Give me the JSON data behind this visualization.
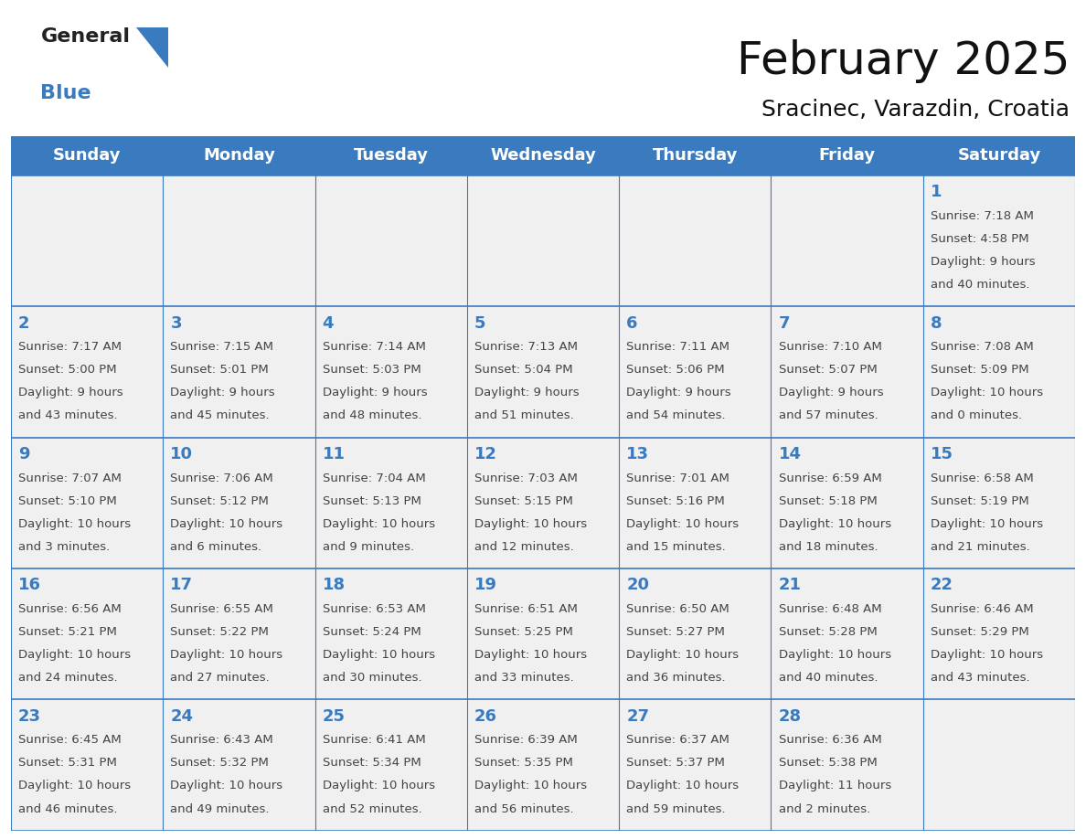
{
  "title": "February 2025",
  "subtitle": "Sracinec, Varazdin, Croatia",
  "header_bg": "#3a7abf",
  "header_text_color": "#ffffff",
  "grid_line_color": "#3a7abf",
  "day_number_color": "#3a7abf",
  "cell_text_color": "#444444",
  "background_color": "#ffffff",
  "weekdays": [
    "Sunday",
    "Monday",
    "Tuesday",
    "Wednesday",
    "Thursday",
    "Friday",
    "Saturday"
  ],
  "days_data": [
    {
      "day": 1,
      "col": 6,
      "row": 0,
      "sunrise": "7:18 AM",
      "sunset": "4:58 PM",
      "daylight_line1": "9 hours",
      "daylight_line2": "and 40 minutes."
    },
    {
      "day": 2,
      "col": 0,
      "row": 1,
      "sunrise": "7:17 AM",
      "sunset": "5:00 PM",
      "daylight_line1": "9 hours",
      "daylight_line2": "and 43 minutes."
    },
    {
      "day": 3,
      "col": 1,
      "row": 1,
      "sunrise": "7:15 AM",
      "sunset": "5:01 PM",
      "daylight_line1": "9 hours",
      "daylight_line2": "and 45 minutes."
    },
    {
      "day": 4,
      "col": 2,
      "row": 1,
      "sunrise": "7:14 AM",
      "sunset": "5:03 PM",
      "daylight_line1": "9 hours",
      "daylight_line2": "and 48 minutes."
    },
    {
      "day": 5,
      "col": 3,
      "row": 1,
      "sunrise": "7:13 AM",
      "sunset": "5:04 PM",
      "daylight_line1": "9 hours",
      "daylight_line2": "and 51 minutes."
    },
    {
      "day": 6,
      "col": 4,
      "row": 1,
      "sunrise": "7:11 AM",
      "sunset": "5:06 PM",
      "daylight_line1": "9 hours",
      "daylight_line2": "and 54 minutes."
    },
    {
      "day": 7,
      "col": 5,
      "row": 1,
      "sunrise": "7:10 AM",
      "sunset": "5:07 PM",
      "daylight_line1": "9 hours",
      "daylight_line2": "and 57 minutes."
    },
    {
      "day": 8,
      "col": 6,
      "row": 1,
      "sunrise": "7:08 AM",
      "sunset": "5:09 PM",
      "daylight_line1": "10 hours",
      "daylight_line2": "and 0 minutes."
    },
    {
      "day": 9,
      "col": 0,
      "row": 2,
      "sunrise": "7:07 AM",
      "sunset": "5:10 PM",
      "daylight_line1": "10 hours",
      "daylight_line2": "and 3 minutes."
    },
    {
      "day": 10,
      "col": 1,
      "row": 2,
      "sunrise": "7:06 AM",
      "sunset": "5:12 PM",
      "daylight_line1": "10 hours",
      "daylight_line2": "and 6 minutes."
    },
    {
      "day": 11,
      "col": 2,
      "row": 2,
      "sunrise": "7:04 AM",
      "sunset": "5:13 PM",
      "daylight_line1": "10 hours",
      "daylight_line2": "and 9 minutes."
    },
    {
      "day": 12,
      "col": 3,
      "row": 2,
      "sunrise": "7:03 AM",
      "sunset": "5:15 PM",
      "daylight_line1": "10 hours",
      "daylight_line2": "and 12 minutes."
    },
    {
      "day": 13,
      "col": 4,
      "row": 2,
      "sunrise": "7:01 AM",
      "sunset": "5:16 PM",
      "daylight_line1": "10 hours",
      "daylight_line2": "and 15 minutes."
    },
    {
      "day": 14,
      "col": 5,
      "row": 2,
      "sunrise": "6:59 AM",
      "sunset": "5:18 PM",
      "daylight_line1": "10 hours",
      "daylight_line2": "and 18 minutes."
    },
    {
      "day": 15,
      "col": 6,
      "row": 2,
      "sunrise": "6:58 AM",
      "sunset": "5:19 PM",
      "daylight_line1": "10 hours",
      "daylight_line2": "and 21 minutes."
    },
    {
      "day": 16,
      "col": 0,
      "row": 3,
      "sunrise": "6:56 AM",
      "sunset": "5:21 PM",
      "daylight_line1": "10 hours",
      "daylight_line2": "and 24 minutes."
    },
    {
      "day": 17,
      "col": 1,
      "row": 3,
      "sunrise": "6:55 AM",
      "sunset": "5:22 PM",
      "daylight_line1": "10 hours",
      "daylight_line2": "and 27 minutes."
    },
    {
      "day": 18,
      "col": 2,
      "row": 3,
      "sunrise": "6:53 AM",
      "sunset": "5:24 PM",
      "daylight_line1": "10 hours",
      "daylight_line2": "and 30 minutes."
    },
    {
      "day": 19,
      "col": 3,
      "row": 3,
      "sunrise": "6:51 AM",
      "sunset": "5:25 PM",
      "daylight_line1": "10 hours",
      "daylight_line2": "and 33 minutes."
    },
    {
      "day": 20,
      "col": 4,
      "row": 3,
      "sunrise": "6:50 AM",
      "sunset": "5:27 PM",
      "daylight_line1": "10 hours",
      "daylight_line2": "and 36 minutes."
    },
    {
      "day": 21,
      "col": 5,
      "row": 3,
      "sunrise": "6:48 AM",
      "sunset": "5:28 PM",
      "daylight_line1": "10 hours",
      "daylight_line2": "and 40 minutes."
    },
    {
      "day": 22,
      "col": 6,
      "row": 3,
      "sunrise": "6:46 AM",
      "sunset": "5:29 PM",
      "daylight_line1": "10 hours",
      "daylight_line2": "and 43 minutes."
    },
    {
      "day": 23,
      "col": 0,
      "row": 4,
      "sunrise": "6:45 AM",
      "sunset": "5:31 PM",
      "daylight_line1": "10 hours",
      "daylight_line2": "and 46 minutes."
    },
    {
      "day": 24,
      "col": 1,
      "row": 4,
      "sunrise": "6:43 AM",
      "sunset": "5:32 PM",
      "daylight_line1": "10 hours",
      "daylight_line2": "and 49 minutes."
    },
    {
      "day": 25,
      "col": 2,
      "row": 4,
      "sunrise": "6:41 AM",
      "sunset": "5:34 PM",
      "daylight_line1": "10 hours",
      "daylight_line2": "and 52 minutes."
    },
    {
      "day": 26,
      "col": 3,
      "row": 4,
      "sunrise": "6:39 AM",
      "sunset": "5:35 PM",
      "daylight_line1": "10 hours",
      "daylight_line2": "and 56 minutes."
    },
    {
      "day": 27,
      "col": 4,
      "row": 4,
      "sunrise": "6:37 AM",
      "sunset": "5:37 PM",
      "daylight_line1": "10 hours",
      "daylight_line2": "and 59 minutes."
    },
    {
      "day": 28,
      "col": 5,
      "row": 4,
      "sunrise": "6:36 AM",
      "sunset": "5:38 PM",
      "daylight_line1": "11 hours",
      "daylight_line2": "and 2 minutes."
    }
  ],
  "num_rows": 5,
  "num_cols": 7,
  "title_fontsize": 36,
  "subtitle_fontsize": 18,
  "weekday_fontsize": 13,
  "day_number_fontsize": 13,
  "cell_text_fontsize": 9.5,
  "logo_general_fontsize": 16,
  "logo_blue_fontsize": 16
}
